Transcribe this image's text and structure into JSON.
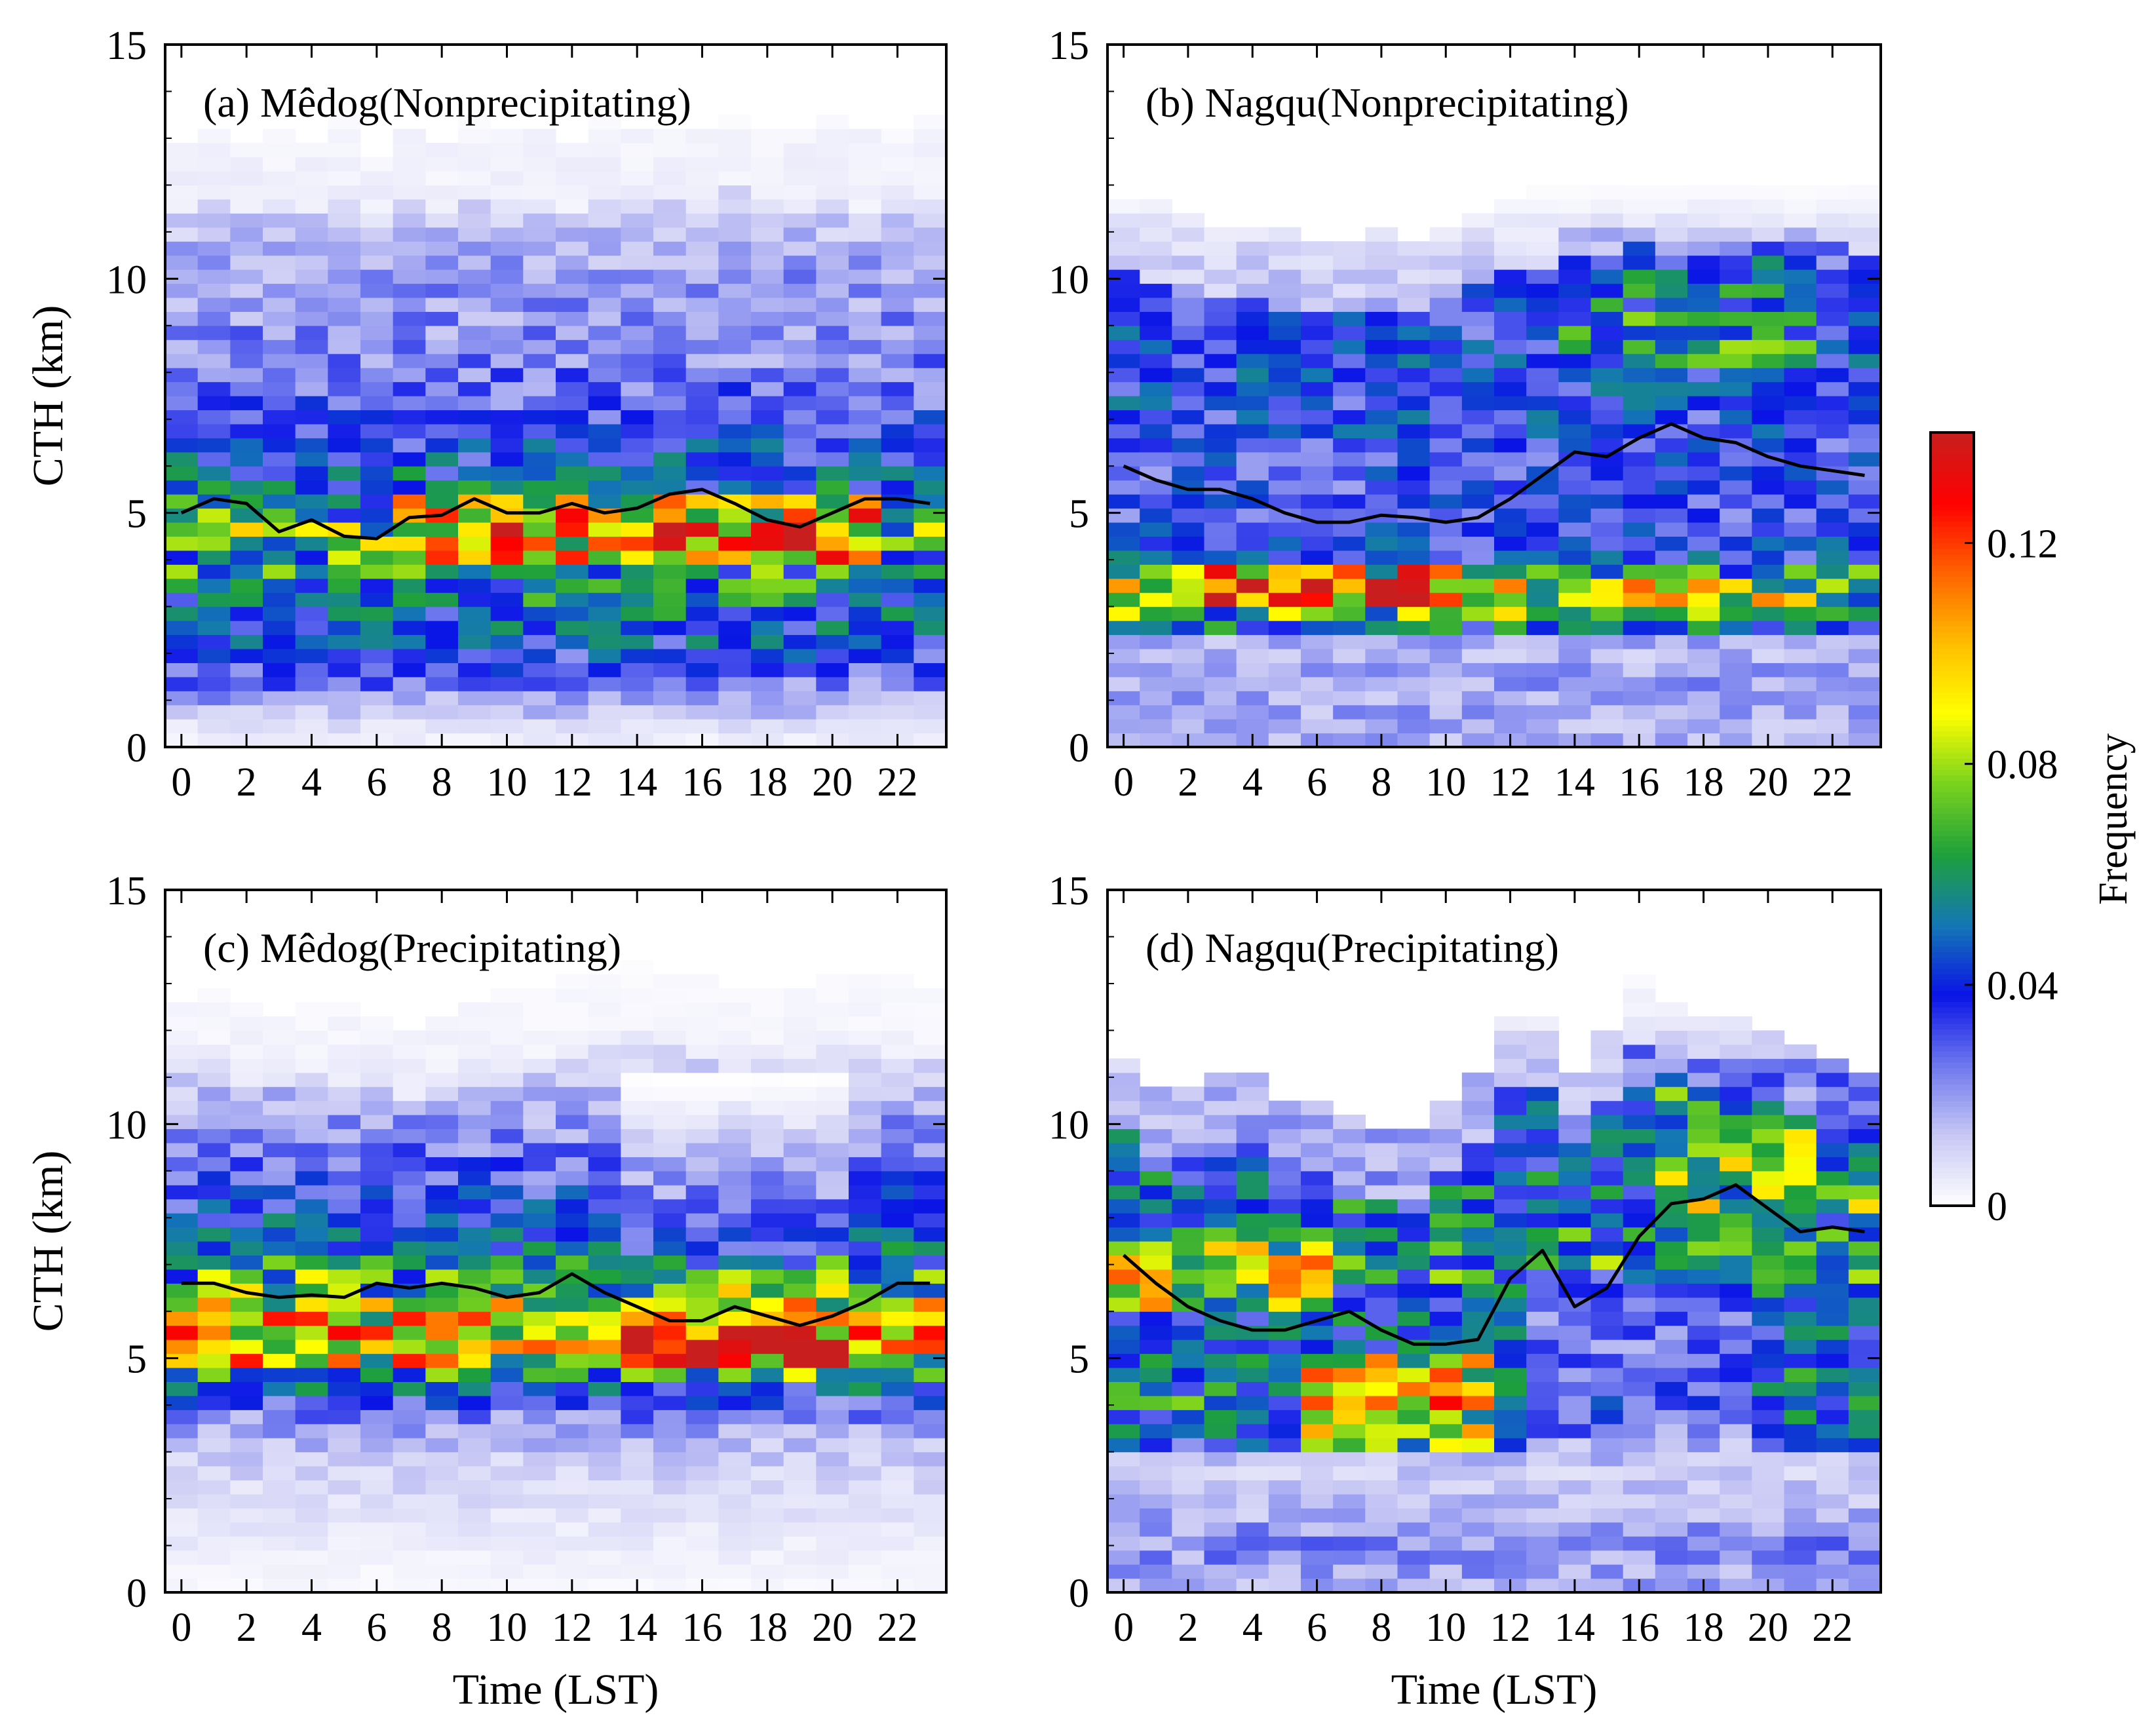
{
  "figure": {
    "ylabel": "CTH (km)",
    "xlabel": "Time (LST)",
    "colorbar": {
      "label": "Frequency",
      "ticks": [
        "0",
        "0.04",
        "0.08",
        "0.12"
      ],
      "tick_values": [
        0,
        0.04,
        0.08,
        0.12
      ],
      "range": [
        0,
        0.14
      ],
      "colors": [
        "#ffffff",
        "#c8c8f4",
        "#6e78ee",
        "#0a14e6",
        "#1478b4",
        "#1ea03c",
        "#78d21e",
        "#ffff00",
        "#ffbe00",
        "#ff6400",
        "#ff0000",
        "#c81e1e"
      ]
    }
  },
  "chart_data": [
    {
      "type": "heatmap",
      "title": "(a) Mêdog(Nonprecipitating)",
      "xlabel": "",
      "ylabel": "CTH (km)",
      "xlim": [
        -0.5,
        23.5
      ],
      "ylim": [
        0,
        15
      ],
      "xticks": [
        0,
        2,
        4,
        6,
        8,
        10,
        12,
        14,
        16,
        18,
        20,
        22
      ],
      "yticks": [
        0,
        5,
        10,
        15
      ],
      "x_labels": [
        "0",
        "2",
        "4",
        "6",
        "8",
        "10",
        "12",
        "14",
        "16",
        "18",
        "20",
        "22"
      ],
      "y_labels": [
        "0",
        "5",
        "10",
        "15"
      ],
      "bin_height_km": 0.3,
      "line_name": "mean CTH",
      "line_x": [
        0,
        1,
        2,
        3,
        4,
        5,
        6,
        7,
        8,
        9,
        10,
        11,
        12,
        13,
        14,
        15,
        16,
        17,
        18,
        19,
        20,
        21,
        22,
        23
      ],
      "line_y": [
        5.0,
        5.3,
        5.2,
        4.6,
        4.85,
        4.5,
        4.45,
        4.9,
        4.95,
        5.3,
        5.0,
        5.0,
        5.2,
        5.0,
        5.1,
        5.4,
        5.5,
        5.2,
        4.85,
        4.7,
        5.0,
        5.3,
        5.3,
        5.2
      ],
      "profile": [
        [
          0.3,
          0.004
        ],
        [
          1.0,
          0.018
        ],
        [
          2.0,
          0.038
        ],
        [
          3.0,
          0.048
        ],
        [
          4.0,
          0.06
        ],
        [
          4.6,
          0.075
        ],
        [
          5.3,
          0.05
        ],
        [
          6.2,
          0.04
        ],
        [
          7.2,
          0.03
        ],
        [
          8.5,
          0.022
        ],
        [
          10.0,
          0.02
        ],
        [
          11.5,
          0.01
        ],
        [
          13.3,
          0.006
        ],
        [
          13.4,
          0.0
        ]
      ],
      "hotspots": [
        {
          "t0": 7,
          "t1": 21,
          "z0": 3.8,
          "z1": 5.3,
          "add": 0.035
        },
        {
          "t0": 15,
          "t1": 17,
          "z0": 4.3,
          "z1": 5.2,
          "add": 0.015
        }
      ],
      "top_env": [
        12.8,
        13.2,
        12.8,
        13.1,
        12.9,
        13.3,
        12.6,
        13.2,
        12.8,
        13.3,
        13.1,
        13.2,
        12.9,
        13.3,
        13.1,
        13.2,
        13.0,
        13.4,
        13.2,
        13.0,
        13.3,
        13.0,
        13.2,
        13.3
      ]
    },
    {
      "type": "heatmap",
      "title": "(b) Nagqu(Nonprecipitating)",
      "xlabel": "",
      "ylabel": "",
      "xlim": [
        -0.5,
        23.5
      ],
      "ylim": [
        0,
        15
      ],
      "xticks": [
        0,
        2,
        4,
        6,
        8,
        10,
        12,
        14,
        16,
        18,
        20,
        22
      ],
      "yticks": [
        0,
        5,
        10,
        15
      ],
      "x_labels": [
        "0",
        "2",
        "4",
        "6",
        "8",
        "10",
        "12",
        "14",
        "16",
        "18",
        "20",
        "22"
      ],
      "y_labels": [
        "0",
        "5",
        "10",
        "15"
      ],
      "bin_height_km": 0.3,
      "line_name": "mean CTH",
      "line_x": [
        0,
        1,
        2,
        3,
        4,
        5,
        6,
        7,
        8,
        9,
        10,
        11,
        12,
        13,
        14,
        15,
        16,
        17,
        18,
        19,
        20,
        21,
        22,
        23
      ],
      "line_y": [
        6.0,
        5.7,
        5.5,
        5.5,
        5.3,
        5.0,
        4.8,
        4.8,
        4.95,
        4.9,
        4.8,
        4.9,
        5.3,
        5.8,
        6.3,
        6.2,
        6.6,
        6.9,
        6.6,
        6.5,
        6.2,
        6.0,
        5.9,
        5.8
      ],
      "profile": [
        [
          0.3,
          0.016
        ],
        [
          1.5,
          0.02
        ],
        [
          2.2,
          0.012
        ],
        [
          2.5,
          0.045
        ],
        [
          3.0,
          0.075
        ],
        [
          3.5,
          0.085
        ],
        [
          4.0,
          0.04
        ],
        [
          5.0,
          0.032
        ],
        [
          6.5,
          0.035
        ],
        [
          8.0,
          0.04
        ],
        [
          9.5,
          0.035
        ],
        [
          10.5,
          0.025
        ],
        [
          11.5,
          0.01
        ],
        [
          12.0,
          0.0
        ]
      ],
      "hotspots": [
        {
          "t0": 3,
          "t1": 12,
          "z0": 2.9,
          "z1": 3.9,
          "add": 0.035
        },
        {
          "t0": 14,
          "t1": 21,
          "z0": 8.0,
          "z1": 11.0,
          "add": 0.018
        }
      ],
      "top_env": [
        11.6,
        11.5,
        11.2,
        11.0,
        11.0,
        10.9,
        10.8,
        10.8,
        10.9,
        10.7,
        11.0,
        11.3,
        11.6,
        11.8,
        11.9,
        12.0,
        12.3,
        12.1,
        11.9,
        12.0,
        12.2,
        12.4,
        12.2,
        11.9
      ]
    },
    {
      "type": "heatmap",
      "title": "(c) Mêdog(Precipitating)",
      "xlabel": "Time (LST)",
      "ylabel": "CTH (km)",
      "xlim": [
        -0.5,
        23.5
      ],
      "ylim": [
        0,
        15
      ],
      "xticks": [
        0,
        2,
        4,
        6,
        8,
        10,
        12,
        14,
        16,
        18,
        20,
        22
      ],
      "yticks": [
        0,
        5,
        10,
        15
      ],
      "x_labels": [
        "0",
        "2",
        "4",
        "6",
        "8",
        "10",
        "12",
        "14",
        "16",
        "18",
        "20",
        "22"
      ],
      "y_labels": [
        "0",
        "5",
        "10",
        "15"
      ],
      "bin_height_km": 0.3,
      "line_name": "mean CTH",
      "line_x": [
        0,
        1,
        2,
        3,
        4,
        5,
        6,
        7,
        8,
        9,
        10,
        11,
        12,
        13,
        14,
        15,
        16,
        17,
        18,
        19,
        20,
        21,
        22,
        23
      ],
      "line_y": [
        6.6,
        6.6,
        6.4,
        6.3,
        6.35,
        6.3,
        6.6,
        6.5,
        6.6,
        6.5,
        6.3,
        6.4,
        6.8,
        6.4,
        6.1,
        5.8,
        5.8,
        6.1,
        5.9,
        5.7,
        5.9,
        6.2,
        6.6,
        6.6
      ],
      "profile": [
        [
          0.3,
          0.002
        ],
        [
          1.5,
          0.006
        ],
        [
          3.0,
          0.012
        ],
        [
          3.6,
          0.02
        ],
        [
          4.0,
          0.03
        ],
        [
          4.5,
          0.05
        ],
        [
          5.0,
          0.09
        ],
        [
          5.5,
          0.1
        ],
        [
          6.0,
          0.085
        ],
        [
          6.5,
          0.07
        ],
        [
          7.0,
          0.055
        ],
        [
          7.5,
          0.045
        ],
        [
          8.5,
          0.035
        ],
        [
          9.5,
          0.025
        ],
        [
          10.5,
          0.015
        ],
        [
          12.0,
          0.006
        ],
        [
          13.3,
          0.003
        ],
        [
          13.4,
          0.0
        ]
      ],
      "hotspots": [
        {
          "t0": 14,
          "t1": 20,
          "z0": 4.8,
          "z1": 5.8,
          "add": 0.03
        },
        {
          "t0": 14,
          "t1": 20,
          "z0": 7.2,
          "z1": 11.0,
          "add": -0.012
        }
      ],
      "top_env": [
        12.5,
        12.8,
        12.4,
        12.3,
        12.6,
        12.4,
        12.3,
        12.0,
        12.2,
        12.5,
        12.7,
        12.9,
        13.0,
        13.3,
        13.4,
        13.1,
        13.0,
        12.7,
        12.8,
        12.9,
        13.1,
        13.2,
        13.0,
        12.8
      ]
    },
    {
      "type": "heatmap",
      "title": "(d) Nagqu(Precipitating)",
      "xlabel": "Time (LST)",
      "ylabel": "",
      "xlim": [
        -0.5,
        23.5
      ],
      "ylim": [
        0,
        15
      ],
      "xticks": [
        0,
        2,
        4,
        6,
        8,
        10,
        12,
        14,
        16,
        18,
        20,
        22
      ],
      "yticks": [
        0,
        5,
        10,
        15
      ],
      "x_labels": [
        "0",
        "2",
        "4",
        "6",
        "8",
        "10",
        "12",
        "14",
        "16",
        "18",
        "20",
        "22"
      ],
      "y_labels": [
        "0",
        "5",
        "10",
        "15"
      ],
      "bin_height_km": 0.3,
      "line_name": "mean CTH",
      "line_x": [
        0,
        1,
        2,
        3,
        4,
        5,
        6,
        7,
        8,
        9,
        10,
        11,
        12,
        13,
        14,
        15,
        16,
        17,
        18,
        19,
        20,
        21,
        22,
        23
      ],
      "line_y": [
        7.2,
        6.6,
        6.1,
        5.8,
        5.6,
        5.6,
        5.8,
        6.0,
        5.6,
        5.3,
        5.3,
        5.4,
        6.7,
        7.3,
        6.1,
        6.5,
        7.6,
        8.3,
        8.4,
        8.7,
        8.2,
        7.7,
        7.8,
        7.7
      ],
      "profile": [
        [
          0.3,
          0.018
        ],
        [
          1.0,
          0.022
        ],
        [
          2.0,
          0.014
        ],
        [
          2.8,
          0.01
        ],
        [
          3.2,
          0.04
        ],
        [
          4.0,
          0.055
        ],
        [
          5.0,
          0.045
        ],
        [
          6.0,
          0.045
        ],
        [
          7.0,
          0.06
        ],
        [
          8.0,
          0.05
        ],
        [
          9.5,
          0.045
        ],
        [
          11.0,
          0.035
        ],
        [
          12.5,
          0.01
        ],
        [
          13.3,
          0.0
        ]
      ],
      "hotspots": [
        {
          "t0": 0,
          "t1": 6,
          "z0": 6.0,
          "z1": 7.6,
          "add": 0.03
        },
        {
          "t0": 6,
          "t1": 11,
          "z0": 3.0,
          "z1": 5.0,
          "add": 0.035
        },
        {
          "t0": 17,
          "t1": 23,
          "z0": 8.0,
          "z1": 11.5,
          "add": 0.025
        },
        {
          "t0": 13,
          "t1": 19,
          "z0": 3.0,
          "z1": 7.0,
          "add": -0.02
        }
      ],
      "top_env": [
        11.4,
        10.6,
        10.8,
        10.9,
        11.0,
        10.3,
        10.5,
        10.0,
        9.8,
        9.7,
        10.4,
        11.0,
        12.2,
        12.3,
        11.0,
        12.0,
        13.3,
        12.6,
        12.3,
        12.1,
        12.0,
        11.6,
        11.2,
        11.1
      ]
    }
  ]
}
